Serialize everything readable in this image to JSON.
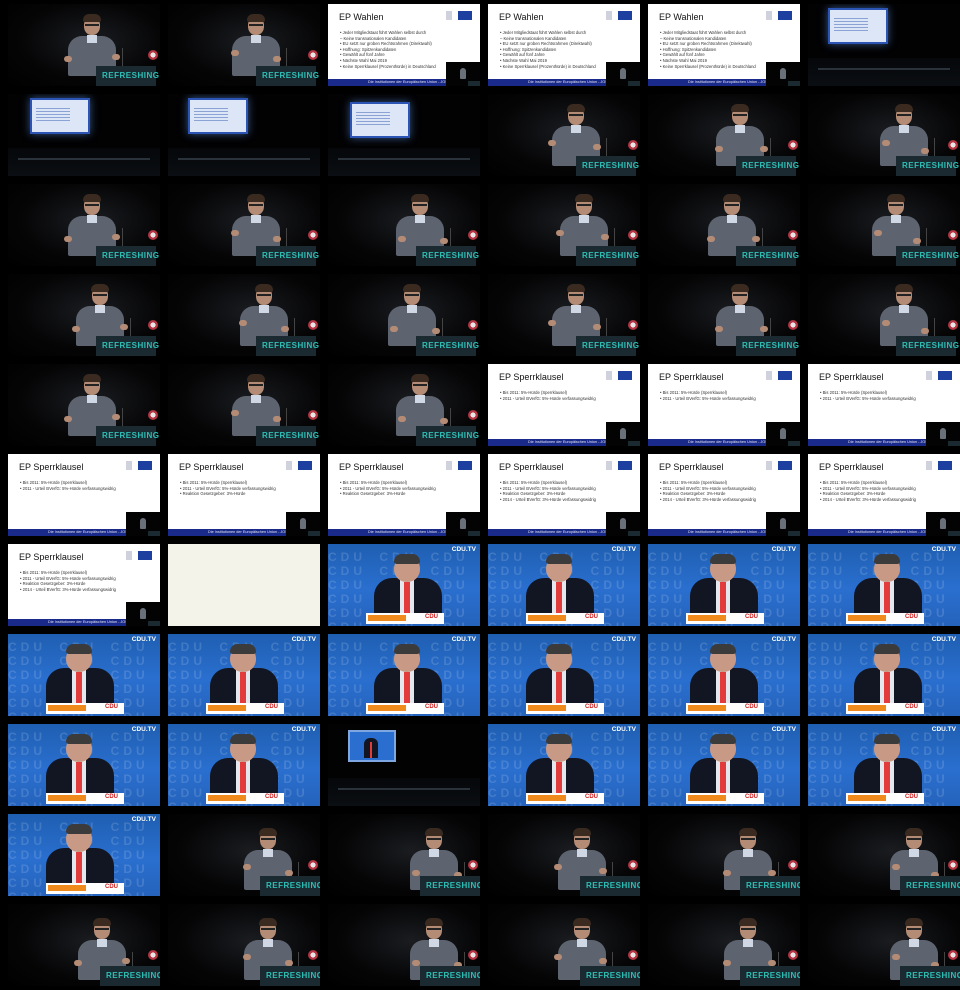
{
  "grid": {
    "columns": 6,
    "rows": 11
  },
  "lectern_label": "REFRESHING",
  "slides": {
    "wahlen": {
      "title": "EP Wahlen",
      "bullets": [
        "• Jeder Mitgliedstaat führt Wahlen selbst durch",
        "– Keine transnationalen Kandidaten",
        "• EU setzt nur groben Rechtsrahmen (Direktwahl)",
        "• Hoffnung: Spitzenkandidaten",
        "• Gewählt auf fünf Jahre",
        "• Nächste Wahl Mai 2019",
        "• Keine Sperrklausel (Prozenthürde) in Deutschland"
      ],
      "footer": "Die Institutionen der Europäischen Union - JOSCS Leipzig"
    },
    "sperrklausel": {
      "title": "EP Sperrklausel",
      "bullets": [
        "• Bis 2011: 5%-Hürde (Sperrklausel)",
        "• 2011 - Urteil BVerfG: 5%-Hürde verfassungswidrig",
        "• Reaktion Gesetzgeber: 3%-Hürde",
        "• 2014 - Urteil BVerfG: 3%-Hürde verfassungswidrig"
      ],
      "footer": "Die Institutionen der Europäischen Union - JOSCS Leipzig"
    }
  },
  "cdu": {
    "channel_logo": "CDU.TV",
    "background_word": "CDU",
    "lectern_word": "CDU"
  },
  "colors": {
    "accent_teal": "#2dc0b7",
    "eu_blue": "#1d3fa0",
    "cdu_blue": "#2a6fcf",
    "tie_red": "#e23b3b"
  },
  "tiles": [
    {
      "kind": "speaker"
    },
    {
      "kind": "speaker"
    },
    {
      "kind": "slide",
      "slide": "wahlen",
      "n": 7
    },
    {
      "kind": "slide",
      "slide": "wahlen",
      "n": 7
    },
    {
      "kind": "slide",
      "slide": "wahlen",
      "n": 7
    },
    {
      "kind": "projector"
    },
    {
      "kind": "projector"
    },
    {
      "kind": "projector"
    },
    {
      "kind": "projector"
    },
    {
      "kind": "speaker"
    },
    {
      "kind": "speaker"
    },
    {
      "kind": "speaker"
    },
    {
      "kind": "speaker"
    },
    {
      "kind": "speaker"
    },
    {
      "kind": "speaker"
    },
    {
      "kind": "speaker"
    },
    {
      "kind": "speaker"
    },
    {
      "kind": "speaker"
    },
    {
      "kind": "speaker"
    },
    {
      "kind": "speaker"
    },
    {
      "kind": "speaker"
    },
    {
      "kind": "speaker"
    },
    {
      "kind": "speaker"
    },
    {
      "kind": "speaker"
    },
    {
      "kind": "speaker"
    },
    {
      "kind": "speaker"
    },
    {
      "kind": "speaker"
    },
    {
      "kind": "slide",
      "slide": "sperrklausel",
      "n": 2
    },
    {
      "kind": "slide",
      "slide": "sperrklausel",
      "n": 2
    },
    {
      "kind": "slide",
      "slide": "sperrklausel",
      "n": 2
    },
    {
      "kind": "slide",
      "slide": "sperrklausel",
      "n": 2
    },
    {
      "kind": "slide",
      "slide": "sperrklausel",
      "n": 3
    },
    {
      "kind": "slide",
      "slide": "sperrklausel",
      "n": 3
    },
    {
      "kind": "slide",
      "slide": "sperrklausel",
      "n": 4
    },
    {
      "kind": "slide",
      "slide": "sperrklausel",
      "n": 4
    },
    {
      "kind": "slide",
      "slide": "sperrklausel",
      "n": 4
    },
    {
      "kind": "slide",
      "slide": "sperrklausel",
      "n": 4
    },
    {
      "kind": "blank"
    },
    {
      "kind": "cdu"
    },
    {
      "kind": "cdu"
    },
    {
      "kind": "cdu"
    },
    {
      "kind": "cdu"
    },
    {
      "kind": "cdu"
    },
    {
      "kind": "cdu"
    },
    {
      "kind": "cdu"
    },
    {
      "kind": "cdu"
    },
    {
      "kind": "cdu"
    },
    {
      "kind": "cdu"
    },
    {
      "kind": "cdu"
    },
    {
      "kind": "cdu"
    },
    {
      "kind": "tv"
    },
    {
      "kind": "cdu"
    },
    {
      "kind": "cdu"
    },
    {
      "kind": "cdu"
    },
    {
      "kind": "cdu"
    },
    {
      "kind": "speaker_far"
    },
    {
      "kind": "speaker_far"
    },
    {
      "kind": "speaker_far"
    },
    {
      "kind": "speaker_far"
    },
    {
      "kind": "speaker_far"
    },
    {
      "kind": "speaker_far"
    },
    {
      "kind": "speaker_far"
    },
    {
      "kind": "speaker_far"
    },
    {
      "kind": "speaker_far"
    },
    {
      "kind": "speaker_far"
    },
    {
      "kind": "speaker_far"
    }
  ]
}
